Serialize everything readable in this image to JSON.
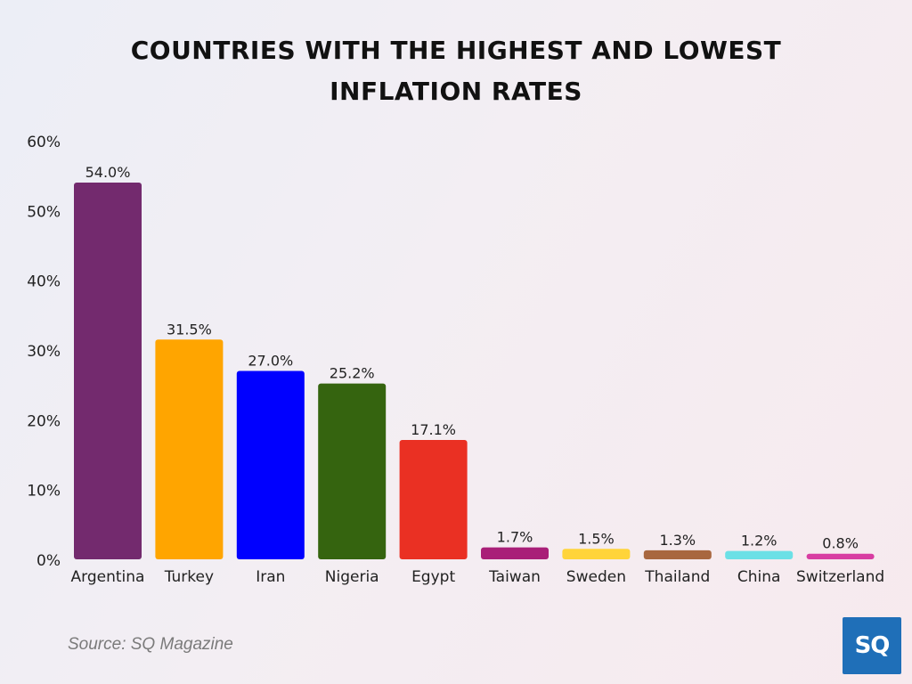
{
  "chart_data": {
    "type": "bar",
    "title": "COUNTRIES WITH THE HIGHEST AND LOWEST\nINFLATION RATES",
    "categories": [
      "Argentina",
      "Turkey",
      "Iran",
      "Nigeria",
      "Egypt",
      "Taiwan",
      "Sweden",
      "Thailand",
      "China",
      "Switzerland"
    ],
    "values": [
      54.0,
      31.5,
      27.0,
      25.2,
      17.1,
      1.7,
      1.5,
      1.3,
      1.2,
      0.8
    ],
    "data_labels": [
      "54.0%",
      "31.5%",
      "27.0%",
      "25.2%",
      "17.1%",
      "1.7%",
      "1.5%",
      "1.3%",
      "1.2%",
      "0.8%"
    ],
    "colors": [
      "#732a6e",
      "#ffa500",
      "#0000ff",
      "#35640f",
      "#ea3023",
      "#a91f78",
      "#ffd43a",
      "#a8673f",
      "#6ce0e6",
      "#d83da2"
    ],
    "ylim": [
      0,
      60
    ],
    "yticks": [
      0,
      10,
      20,
      30,
      40,
      50,
      60
    ],
    "ytick_labels": [
      "0%",
      "10%",
      "20%",
      "30%",
      "40%",
      "50%",
      "60%"
    ],
    "xlabel": "",
    "ylabel": "",
    "grid": false,
    "legend": "none"
  },
  "footer": {
    "source": "Source: SQ Magazine",
    "logo_text": "SQ"
  }
}
